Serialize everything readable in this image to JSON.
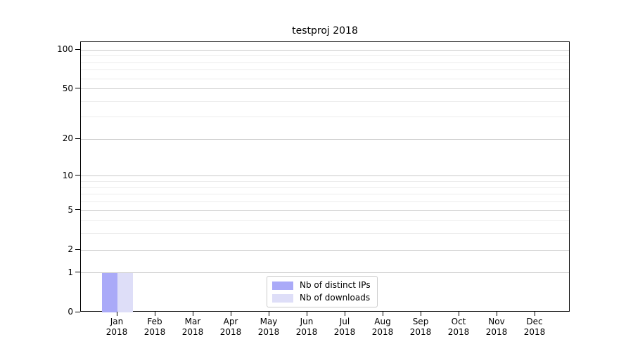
{
  "chart_data": {
    "type": "bar",
    "title": "testproj 2018",
    "categories": [
      "Jan 2018",
      "Feb 2018",
      "Mar 2018",
      "Apr 2018",
      "May 2018",
      "Jun 2018",
      "Jul 2018",
      "Aug 2018",
      "Sep 2018",
      "Oct 2018",
      "Nov 2018",
      "Dec 2018"
    ],
    "x_tick_month": [
      "Jan",
      "Feb",
      "Mar",
      "Apr",
      "May",
      "Jun",
      "Jul",
      "Aug",
      "Sep",
      "Oct",
      "Nov",
      "Dec"
    ],
    "x_tick_year": "2018",
    "series": [
      {
        "name": "Nb of distinct IPs",
        "color": "#aaaaf8",
        "values": [
          1,
          0,
          0,
          0,
          0,
          0,
          0,
          0,
          0,
          0,
          0,
          0
        ]
      },
      {
        "name": "Nb of downloads",
        "color": "#dedef8",
        "values": [
          1,
          0,
          0,
          0,
          0,
          0,
          0,
          0,
          0,
          0,
          0,
          0
        ]
      }
    ],
    "yscale": "log1p",
    "ylim": [
      0,
      115
    ],
    "y_major_ticks": [
      0,
      1,
      2,
      5,
      10,
      20,
      50,
      100
    ],
    "y_minor_ticks": [
      3,
      4,
      6,
      7,
      8,
      9,
      30,
      40,
      60,
      70,
      80,
      90
    ],
    "grid": "horizontal",
    "legend": {
      "entries": [
        "Nb of distinct IPs",
        "Nb of downloads"
      ],
      "position": "inside-bottom-center"
    }
  },
  "colors": {
    "background": "#ffffff",
    "bar_distinct_ips": "#aaaaf8",
    "bar_downloads": "#dedef8",
    "grid_major": "#c9c9c9",
    "grid_minor": "#ececec",
    "spine": "#000000",
    "text": "#000000",
    "legend_border": "#cccccc"
  }
}
